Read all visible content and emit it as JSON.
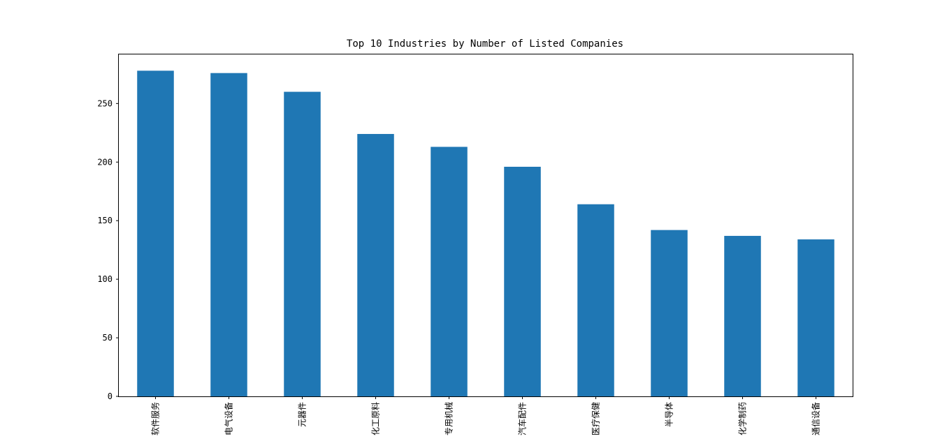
{
  "chart_data": {
    "type": "bar",
    "title": "Top 10 Industries by Number of Listed Companies",
    "xlabel": "",
    "ylabel": "",
    "categories": [
      "软件服务",
      "电气设备",
      "元器件",
      "化工原料",
      "专用机械",
      "汽车配件",
      "医疗保健",
      "半导体",
      "化学制药",
      "通信设备"
    ],
    "values": [
      278,
      276,
      260,
      224,
      213,
      196,
      164,
      142,
      137,
      134
    ],
    "ylim": [
      0,
      291.9
    ],
    "yticks": [
      0,
      50,
      100,
      150,
      200,
      250
    ],
    "grid": false,
    "legend": "none",
    "bar_color": "#1f77b4"
  }
}
